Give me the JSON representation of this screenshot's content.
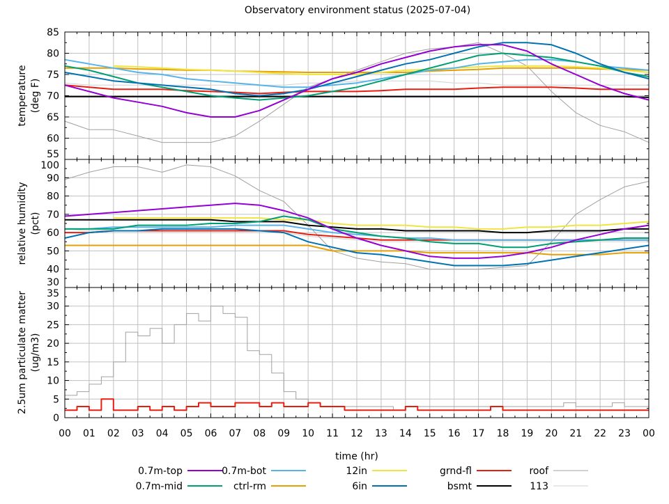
{
  "chart_data": {
    "title": "Observatory environment status (2025-07-04)",
    "type": "line",
    "xlabel": "time (hr)",
    "x_tick_labels": [
      "00",
      "01",
      "02",
      "03",
      "04",
      "05",
      "06",
      "07",
      "08",
      "09",
      "10",
      "11",
      "12",
      "13",
      "14",
      "15",
      "16",
      "17",
      "18",
      "19",
      "20",
      "21",
      "22",
      "23",
      "00"
    ],
    "xlim": [
      0,
      24
    ],
    "grid": true,
    "legend_placement": "bottom",
    "legend": [
      {
        "name": "0.7m-top",
        "color": "#9400d3"
      },
      {
        "name": "0.7m-mid",
        "color": "#009e73"
      },
      {
        "name": "0.7m-bot",
        "color": "#56b4e9"
      },
      {
        "name": "ctrl-rm",
        "color": "#e69f00"
      },
      {
        "name": "12in",
        "color": "#f0e442"
      },
      {
        "name": "6in",
        "color": "#0072b2"
      },
      {
        "name": "grnd-fl",
        "color": "#e51e10"
      },
      {
        "name": "bsmt",
        "color": "#000000"
      },
      {
        "name": "roof",
        "color": "#a0a0a0"
      },
      {
        "name": "113",
        "color": "#d0d0d0"
      }
    ],
    "panels": [
      {
        "ylabel": [
          "temperature",
          "(deg F)"
        ],
        "ylim": [
          55,
          85
        ],
        "y_ticks": [
          55,
          60,
          65,
          70,
          75,
          80,
          85
        ],
        "x_hours": [
          0,
          1,
          2,
          3,
          4,
          5,
          6,
          7,
          8,
          9,
          10,
          11,
          12,
          13,
          14,
          15,
          16,
          17,
          18,
          19,
          20,
          21,
          22,
          23,
          24
        ],
        "series": [
          {
            "name": "113",
            "values": [
              73,
              72.5,
              72.5,
              72.5,
              72.5,
              72.5,
              72.5,
              72.5,
              72.5,
              72.5,
              73,
              73,
              73.5,
              73.5,
              73.5,
              73.5,
              73,
              73,
              72.5,
              72.5,
              72.5,
              72.5,
              72.5,
              72.5,
              72.5
            ]
          },
          {
            "name": "roof",
            "values": [
              64,
              62,
              62,
              60.5,
              59,
              59,
              59,
              60.5,
              64,
              68,
              72,
              74,
              76,
              78,
              80,
              81,
              81.5,
              82.5,
              80,
              77,
              71,
              66,
              63,
              61.5,
              59
            ]
          },
          {
            "name": "bsmt",
            "values": [
              69.8,
              69.8,
              69.8,
              69.8,
              69.8,
              69.8,
              69.8,
              69.8,
              69.8,
              69.8,
              69.8,
              69.8,
              69.8,
              69.8,
              69.8,
              69.8,
              69.8,
              69.8,
              69.8,
              69.8,
              69.8,
              69.8,
              69.8,
              69.8,
              69.6
            ]
          },
          {
            "name": "grnd-fl",
            "values": [
              72.5,
              72,
              71.5,
              71.5,
              71.5,
              71.2,
              71,
              70.8,
              70.5,
              70.8,
              71,
              71,
              71,
              71.2,
              71.5,
              71.5,
              71.5,
              71.8,
              72,
              72,
              72,
              71.8,
              71.5,
              71.5,
              71.5
            ]
          },
          {
            "name": "ctrl-rm",
            "values": [
              76.5,
              76.5,
              76.5,
              76.3,
              76.2,
              76,
              76,
              75.8,
              75.7,
              75.6,
              75.5,
              75.5,
              75.5,
              75.5,
              75.5,
              75.8,
              76,
              76.2,
              76.5,
              76.5,
              76.5,
              76.5,
              76.3,
              76.2,
              76
            ]
          },
          {
            "name": "12in",
            "values": [
              null,
              null,
              77,
              76.8,
              76.5,
              76.2,
              76,
              75.8,
              75.5,
              75.2,
              75,
              75,
              75,
              75.5,
              76,
              76.2,
              76.5,
              76.8,
              77,
              77,
              77,
              76.8,
              76.5,
              76,
              75.5
            ]
          },
          {
            "name": "0.7m-bot",
            "values": [
              78.5,
              77.5,
              76.5,
              75.5,
              75,
              74,
              73.5,
              73,
              72.5,
              72,
              72,
              72.5,
              73,
              74,
              75,
              76,
              76.5,
              77.5,
              78,
              78.5,
              78.5,
              78,
              77,
              76.5,
              76
            ]
          },
          {
            "name": "0.7m-mid",
            "values": [
              77,
              76,
              74.5,
              73,
              72,
              71,
              70,
              69.5,
              69,
              69.5,
              70,
              71,
              72,
              73.5,
              75,
              76.5,
              78,
              79.5,
              80,
              79.5,
              79,
              78,
              77,
              75.5,
              74.5
            ]
          },
          {
            "name": "6in",
            "values": [
              75.5,
              74.5,
              73.5,
              73,
              72.5,
              72,
              71.5,
              70.5,
              70,
              70.5,
              71.5,
              73,
              74.5,
              76,
              77.5,
              78.5,
              80,
              81.5,
              82.5,
              82.5,
              82,
              80,
              77.5,
              75.5,
              74
            ]
          },
          {
            "name": "0.7m-top",
            "values": [
              72.5,
              71,
              69.5,
              68.5,
              67.5,
              66,
              65,
              65,
              66.5,
              69,
              71.5,
              74,
              75.5,
              77.5,
              79,
              80.5,
              81.5,
              82,
              82,
              80.5,
              77.5,
              75,
              72.5,
              70.5,
              69
            ]
          }
        ]
      },
      {
        "ylabel": [
          "relative humidity",
          "(pct)"
        ],
        "ylim": [
          30,
          100
        ],
        "y_ticks": [
          30,
          40,
          50,
          60,
          70,
          80,
          90,
          100
        ],
        "x_hours": [
          0,
          1,
          2,
          3,
          4,
          5,
          6,
          7,
          8,
          9,
          10,
          11,
          12,
          13,
          14,
          15,
          16,
          17,
          18,
          19,
          20,
          21,
          22,
          23,
          24
        ],
        "series": [
          {
            "name": "113",
            "values": [
              62,
              61,
              61,
              61,
              61,
              61,
              61,
              61,
              61,
              60,
              58,
              57,
              56,
              55,
              55,
              55,
              55,
              55,
              55,
              55,
              55,
              55,
              55,
              55,
              55
            ]
          },
          {
            "name": "roof",
            "values": [
              89,
              93,
              96,
              96,
              93,
              97,
              96,
              91,
              83,
              77,
              64,
              50,
              46,
              44,
              43,
              40,
              40,
              40,
              41,
              42,
              55,
              70,
              78,
              85,
              88
            ]
          },
          {
            "name": "bsmt",
            "values": [
              67,
              67,
              67,
              67,
              67,
              67,
              67,
              66,
              66,
              66,
              64,
              63,
              62,
              62,
              61,
              61,
              61,
              61,
              60,
              60,
              61,
              61,
              61,
              62,
              62
            ]
          },
          {
            "name": "grnd-fl",
            "values": [
              60,
              60,
              61,
              61,
              61,
              61,
              61,
              61,
              61,
              61,
              59,
              58,
              57,
              56,
              56,
              56,
              56,
              56,
              56,
              56,
              56,
              56,
              56,
              56,
              56
            ]
          },
          {
            "name": "ctrl-rm",
            "values": [
              53,
              53,
              53,
              53,
              53,
              53,
              53,
              53,
              53,
              53,
              53,
              50,
              50,
              50,
              50,
              49,
              49,
              49,
              49,
              49,
              48,
              48,
              48,
              49,
              49
            ]
          },
          {
            "name": "12in",
            "values": [
              null,
              null,
              68,
              68,
              68,
              68,
              68,
              68,
              68,
              67,
              67,
              65,
              64,
              64,
              64,
              63,
              63,
              62,
              62,
              63,
              63,
              64,
              64,
              65,
              66
            ]
          },
          {
            "name": "0.7m-bot",
            "values": [
              62,
              62,
              63,
              63,
              63,
              63,
              63,
              64,
              64,
              64,
              62,
              60,
              59,
              58,
              57,
              57,
              56,
              56,
              56,
              56,
              56,
              56,
              56,
              56,
              56
            ]
          },
          {
            "name": "0.7m-mid",
            "values": [
              62,
              62,
              62,
              64,
              64,
              64,
              65,
              65,
              66,
              69,
              67,
              62,
              60,
              58,
              57,
              55,
              54,
              54,
              52,
              52,
              54,
              55,
              56,
              57,
              57
            ]
          },
          {
            "name": "6in",
            "values": [
              57,
              60,
              61,
              61,
              62,
              62,
              62,
              62,
              61,
              60,
              55,
              52,
              49,
              48,
              46,
              44,
              42,
              42,
              42,
              43,
              45,
              47,
              49,
              51,
              53
            ]
          },
          {
            "name": "0.7m-top",
            "values": [
              69,
              70,
              71,
              72,
              73,
              74,
              75,
              76,
              75,
              72,
              68,
              62,
              57,
              53,
              50,
              47,
              46,
              46,
              47,
              49,
              52,
              56,
              59,
              62,
              64
            ]
          }
        ]
      },
      {
        "ylabel": [
          "2.5um particulate matter",
          "(ug/m3)"
        ],
        "ylim": [
          0,
          35
        ],
        "y_ticks": [
          0,
          5,
          10,
          15,
          20,
          25,
          30,
          35
        ],
        "x_hours": [
          0,
          0.5,
          1,
          1.5,
          2,
          2.5,
          3,
          3.5,
          4,
          4.5,
          5,
          5.5,
          6,
          6.5,
          7,
          7.5,
          8,
          8.5,
          9,
          9.5,
          10,
          10.5,
          11,
          11.5,
          12,
          12.5,
          13,
          13.5,
          14,
          14.5,
          15,
          15.5,
          16,
          16.5,
          17,
          17.5,
          18,
          18.5,
          19,
          19.5,
          20,
          20.5,
          21,
          21.5,
          22,
          22.5,
          23,
          23.5,
          24
        ],
        "series": [
          {
            "name": "roof",
            "values": [
              6,
              7,
              9,
              11,
              15,
              23,
              22,
              24,
              20,
              25,
              28,
              26,
              30,
              28,
              27,
              18,
              17,
              12,
              7,
              5,
              4,
              3,
              3,
              3,
              3,
              3,
              3,
              2,
              3,
              3,
              3,
              3,
              3,
              3,
              3,
              3,
              3,
              3,
              3,
              3,
              3,
              4,
              3,
              3,
              3,
              4,
              3,
              3,
              3
            ]
          },
          {
            "name": "grnd-fl",
            "values": [
              2,
              3,
              2,
              5,
              2,
              2,
              3,
              2,
              3,
              2,
              3,
              4,
              3,
              3,
              4,
              4,
              3,
              4,
              3,
              3,
              4,
              3,
              3,
              2,
              2,
              2,
              2,
              2,
              3,
              2,
              2,
              2,
              2,
              2,
              2,
              3,
              2,
              2,
              2,
              2,
              2,
              2,
              2,
              2,
              2,
              2,
              2,
              2,
              2
            ]
          }
        ]
      }
    ]
  }
}
